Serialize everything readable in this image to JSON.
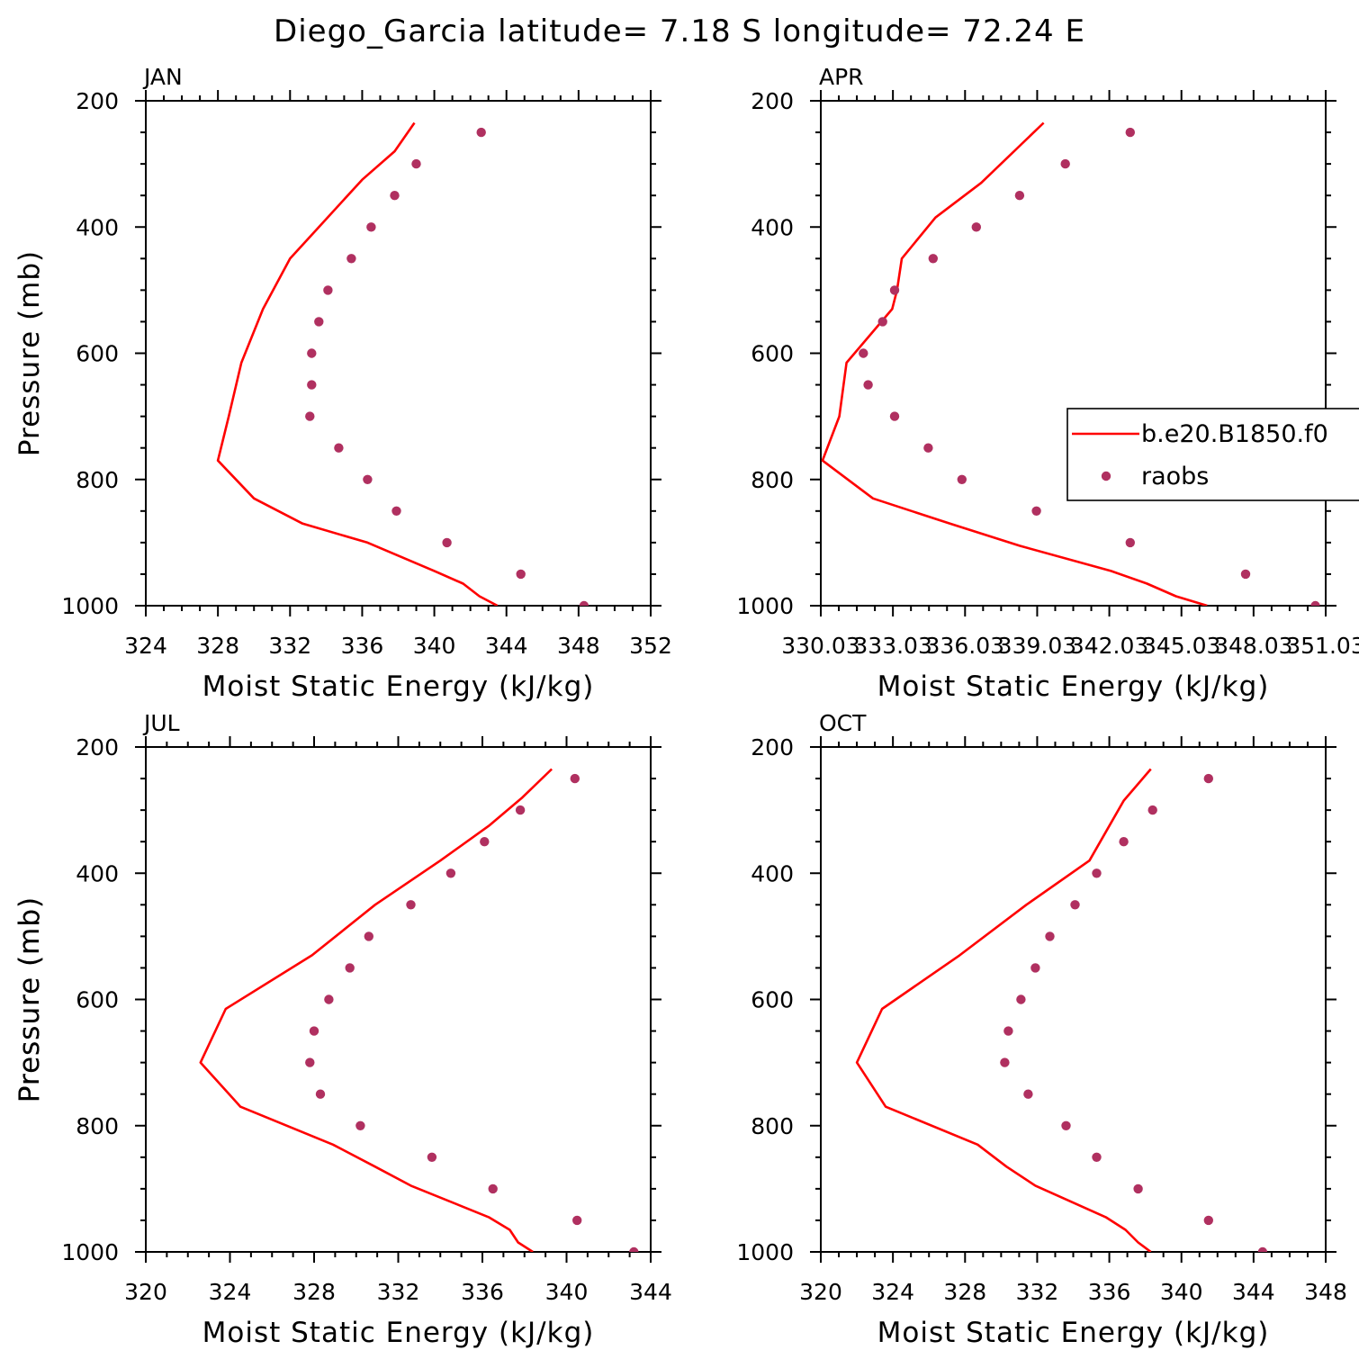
{
  "title": "Diego_Garcia  latitude= 7.18 S longitude= 72.24 E",
  "colors": {
    "model_line": "#ff0000",
    "raobs_marker": "#b03060",
    "axes": "#000000"
  },
  "legend": {
    "location": "right-middle of APR panel",
    "model_label": "b.e20.B1850.f0",
    "obs_label": "raobs"
  },
  "chart_data": [
    {
      "type": "line",
      "panel": "JAN",
      "xlabel": "Moist Static Energy (kJ/kg)",
      "ylabel": "Pressure (mb)",
      "xlim": [
        324,
        352
      ],
      "ylim": [
        1000,
        200
      ],
      "xticks": [
        "324",
        "328",
        "332",
        "336",
        "340",
        "344",
        "348",
        "352"
      ],
      "yticks": [
        "200",
        "400",
        "600",
        "800",
        "1000"
      ],
      "series": [
        {
          "name": "b.e20.B1850.f0",
          "kind": "line",
          "x": [
            343.5,
            342.5,
            341.6,
            340.0,
            336.3,
            332.7,
            330.0,
            328.0,
            328.6,
            329.3,
            330.5,
            332.0,
            336.0,
            337.8,
            338.9
          ],
          "y": [
            1000,
            985,
            965,
            945,
            900,
            870,
            830,
            770,
            700,
            615,
            530,
            450,
            325,
            280,
            235
          ]
        },
        {
          "name": "raobs",
          "kind": "scatter",
          "x": [
            348.3,
            344.8,
            340.7,
            337.9,
            336.3,
            334.7,
            333.1,
            333.2,
            333.2,
            333.6,
            334.1,
            335.4,
            336.5,
            337.8,
            339.0,
            342.6
          ],
          "y": [
            1000,
            950,
            900,
            850,
            800,
            750,
            700,
            650,
            600,
            550,
            500,
            450,
            400,
            350,
            300,
            250
          ]
        }
      ]
    },
    {
      "type": "line",
      "panel": "APR",
      "xlabel": "Moist Static Energy (kJ/kg)",
      "ylabel": "",
      "xlim": [
        330.03,
        351.03
      ],
      "ylim": [
        1000,
        200
      ],
      "xticks": [
        "330.03",
        "333.03",
        "336.03",
        "339.03",
        "342.03",
        "345.03",
        "348.03",
        "351.03"
      ],
      "yticks": [
        "200",
        "400",
        "600",
        "800",
        "1000"
      ],
      "series": [
        {
          "name": "b.e20.B1850.f0",
          "kind": "line",
          "x": [
            346.1,
            344.8,
            343.6,
            342.1,
            338.3,
            335.4,
            332.2,
            330.1,
            330.8,
            331.1,
            333.0,
            333.2,
            333.4,
            334.8,
            336.7,
            339.3
          ],
          "y": [
            1000,
            985,
            965,
            945,
            905,
            870,
            830,
            770,
            700,
            615,
            530,
            500,
            450,
            385,
            330,
            235
          ]
        },
        {
          "name": "raobs",
          "kind": "scatter",
          "x": [
            350.6,
            347.7,
            342.9,
            339.0,
            335.9,
            334.5,
            333.1,
            332.0,
            331.8,
            332.6,
            333.1,
            334.7,
            336.5,
            338.3,
            340.2,
            342.9
          ],
          "y": [
            1000,
            950,
            900,
            850,
            800,
            750,
            700,
            650,
            600,
            550,
            500,
            450,
            400,
            350,
            300,
            250
          ]
        }
      ]
    },
    {
      "type": "line",
      "panel": "JUL",
      "xlabel": "Moist Static Energy (kJ/kg)",
      "ylabel": "Pressure (mb)",
      "xlim": [
        320,
        344
      ],
      "ylim": [
        1000,
        200
      ],
      "xticks": [
        "320",
        "324",
        "328",
        "332",
        "336",
        "340",
        "344"
      ],
      "yticks": [
        "200",
        "400",
        "600",
        "800",
        "1000"
      ],
      "series": [
        {
          "name": "b.e20.B1850.f0",
          "kind": "line",
          "x": [
            338.4,
            337.7,
            337.3,
            336.3,
            332.6,
            330.9,
            328.9,
            324.5,
            322.6,
            323.8,
            327.9,
            330.9,
            334.0,
            336.3,
            337.9,
            339.3
          ],
          "y": [
            1000,
            985,
            965,
            945,
            895,
            865,
            830,
            770,
            700,
            615,
            530,
            450,
            380,
            325,
            280,
            235
          ]
        },
        {
          "name": "raobs",
          "kind": "scatter",
          "x": [
            343.2,
            340.5,
            336.5,
            333.6,
            330.2,
            328.3,
            327.8,
            328.0,
            328.7,
            329.7,
            330.6,
            332.6,
            334.5,
            336.1,
            337.8,
            340.4
          ],
          "y": [
            1000,
            950,
            900,
            850,
            800,
            750,
            700,
            650,
            600,
            550,
            500,
            450,
            400,
            350,
            300,
            250
          ]
        }
      ]
    },
    {
      "type": "line",
      "panel": "OCT",
      "xlabel": "Moist Static Energy (kJ/kg)",
      "ylabel": "Pressure (mb)",
      "xlim": [
        320,
        348
      ],
      "ylim": [
        1000,
        200
      ],
      "xticks": [
        "320",
        "324",
        "328",
        "332",
        "336",
        "340",
        "344",
        "348"
      ],
      "yticks": [
        "200",
        "400",
        "600",
        "800",
        "1000"
      ],
      "series": [
        {
          "name": "b.e20.B1850.f0",
          "kind": "line",
          "x": [
            338.3,
            337.6,
            336.9,
            335.8,
            331.9,
            330.3,
            328.7,
            323.6,
            322.0,
            323.4,
            327.7,
            331.4,
            334.9,
            336.8,
            338.3
          ],
          "y": [
            1000,
            985,
            965,
            945,
            895,
            865,
            830,
            770,
            700,
            615,
            530,
            450,
            380,
            285,
            235
          ]
        },
        {
          "name": "raobs",
          "kind": "scatter",
          "x": [
            344.5,
            341.5,
            337.6,
            335.3,
            333.6,
            331.5,
            330.2,
            330.4,
            331.1,
            331.9,
            332.7,
            334.1,
            335.3,
            336.8,
            338.4,
            341.5
          ],
          "y": [
            1000,
            950,
            900,
            850,
            800,
            750,
            700,
            650,
            600,
            550,
            500,
            450,
            400,
            350,
            300,
            250
          ]
        }
      ]
    }
  ]
}
